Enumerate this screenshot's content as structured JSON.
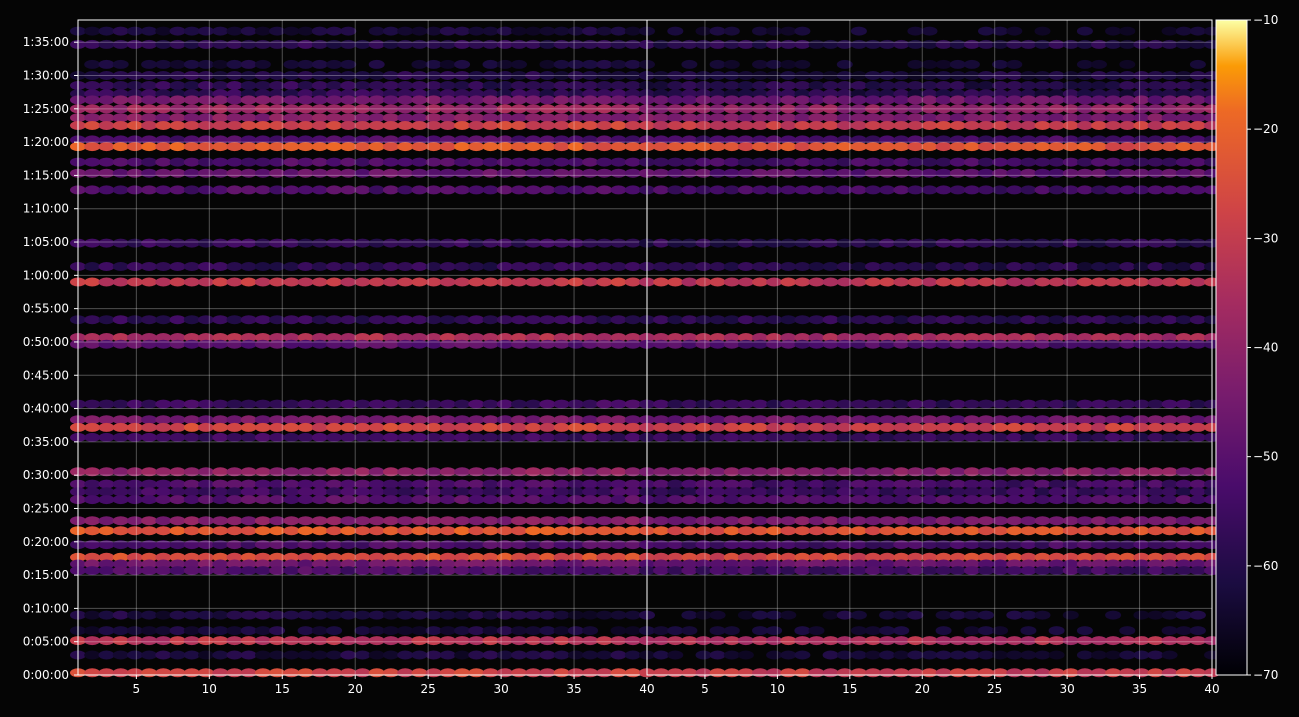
{
  "chart_data": {
    "type": "heatmap",
    "title": "",
    "xlabel": "",
    "ylabel": "",
    "background": "#050505",
    "text_color": "#ffffff",
    "grid": true,
    "grid_color": "#ffffff",
    "colormap": "inferno",
    "panels": [
      {
        "name": "",
        "xlim": [
          1,
          40
        ],
        "xticks": [
          5,
          10,
          15,
          20,
          25,
          30,
          35,
          40
        ]
      },
      {
        "name": "",
        "xlim": [
          1,
          40
        ],
        "xticks": [
          5,
          10,
          15,
          20,
          25,
          30,
          35,
          40
        ]
      }
    ],
    "y_axis": {
      "unit": "seconds",
      "ylim": [
        0,
        5900
      ],
      "ticks": [
        0,
        300,
        600,
        900,
        1200,
        1500,
        1800,
        2100,
        2400,
        2700,
        3000,
        3300,
        3600,
        3900,
        4200,
        4500,
        4800,
        5100,
        5400,
        5700
      ],
      "tick_labels": [
        "0:00:00",
        "0:05:00",
        "0:10:00",
        "0:15:00",
        "0:20:00",
        "0:25:00",
        "0:30:00",
        "0:35:00",
        "0:40:00",
        "0:45:00",
        "0:50:00",
        "0:55:00",
        "1:00:00",
        "1:05:00",
        "1:10:00",
        "1:15:00",
        "1:20:00",
        "1:25:00",
        "1:30:00",
        "1:35:00"
      ]
    },
    "colorbar": {
      "vmin": -70,
      "vmax": -10,
      "ticks": [
        -70,
        -60,
        -50,
        -40,
        -30,
        -20,
        -10
      ],
      "tick_labels": [
        "−70",
        "−60",
        "−50",
        "−40",
        "−30",
        "−20",
        "−10"
      ]
    },
    "bands": [
      {
        "t": 5800,
        "level": -63
      },
      {
        "t": 5680,
        "level": -58
      },
      {
        "t": 5500,
        "level": -64
      },
      {
        "t": 5400,
        "level": -60
      },
      {
        "t": 5310,
        "level": -58
      },
      {
        "t": 5235,
        "level": -58
      },
      {
        "t": 5180,
        "level": -45
      },
      {
        "t": 5100,
        "level": -38
      },
      {
        "t": 5020,
        "level": -42
      },
      {
        "t": 4950,
        "level": -28
      },
      {
        "t": 4820,
        "level": -52
      },
      {
        "t": 4760,
        "level": -22
      },
      {
        "t": 4620,
        "level": -52
      },
      {
        "t": 4520,
        "level": -48
      },
      {
        "t": 4370,
        "level": -52
      },
      {
        "t": 3890,
        "level": -57
      },
      {
        "t": 3680,
        "level": -58
      },
      {
        "t": 3540,
        "level": -30
      },
      {
        "t": 3200,
        "level": -57
      },
      {
        "t": 3040,
        "level": -34
      },
      {
        "t": 2980,
        "level": -50
      },
      {
        "t": 2440,
        "level": -55
      },
      {
        "t": 2300,
        "level": -45
      },
      {
        "t": 2230,
        "level": -27
      },
      {
        "t": 2140,
        "level": -55
      },
      {
        "t": 1830,
        "level": -40
      },
      {
        "t": 1720,
        "level": -52
      },
      {
        "t": 1650,
        "level": -55
      },
      {
        "t": 1580,
        "level": -50
      },
      {
        "t": 1390,
        "level": -42
      },
      {
        "t": 1300,
        "level": -22
      },
      {
        "t": 1175,
        "level": -52
      },
      {
        "t": 1060,
        "level": -25
      },
      {
        "t": 1000,
        "level": -46
      },
      {
        "t": 940,
        "level": -52
      },
      {
        "t": 540,
        "level": -62
      },
      {
        "t": 400,
        "level": -63
      },
      {
        "t": 310,
        "level": -32
      },
      {
        "t": 180,
        "level": -62
      },
      {
        "t": 20,
        "level": -28
      }
    ]
  }
}
